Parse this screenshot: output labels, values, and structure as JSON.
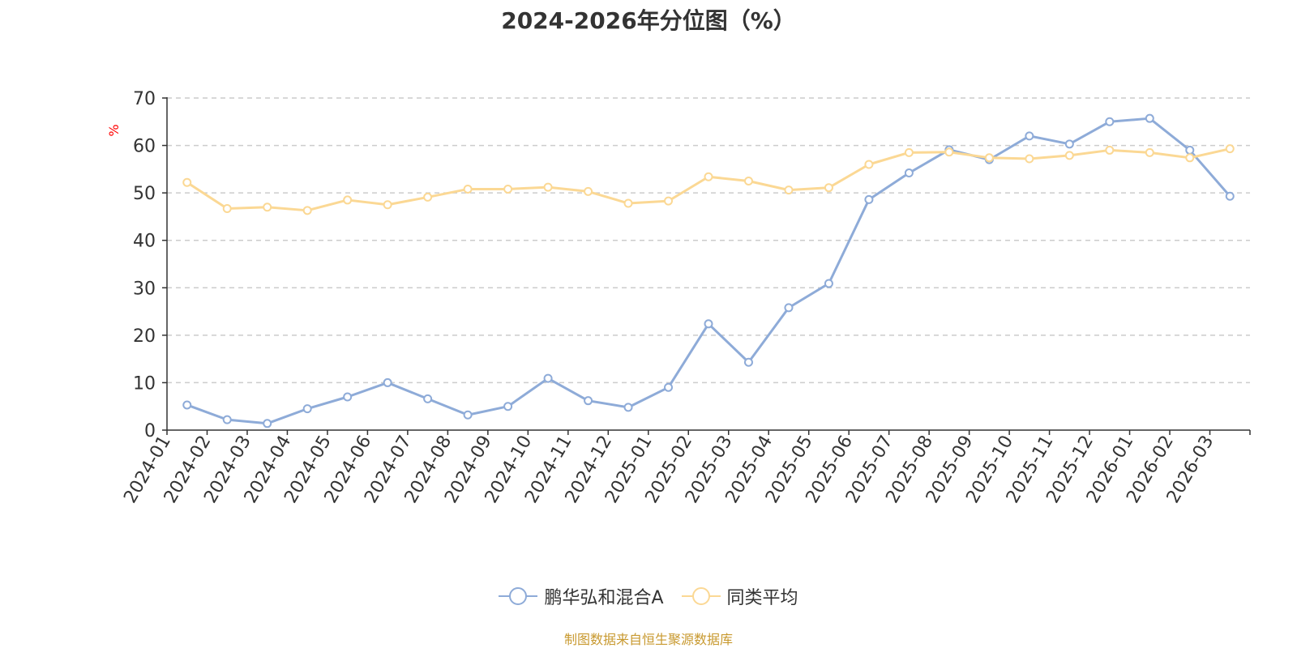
{
  "title": "2024-2026年分位图（%）",
  "unit_label": "%",
  "source_text": "制图数据来自恒生聚源数据库",
  "colors": {
    "series_a": "#8eabd8",
    "series_b": "#fbd894",
    "unit": "#ff0000",
    "source": "#c8992f"
  },
  "chart_data": {
    "type": "line",
    "title": "2024-2026年分位图（%）",
    "xlabel": "",
    "ylabel": "%",
    "ylim": [
      0,
      70
    ],
    "yticks": [
      0,
      10,
      20,
      30,
      40,
      50,
      60,
      70
    ],
    "grid": true,
    "legend_position": "bottom-center",
    "categories": [
      "2024-01",
      "2024-02",
      "2024-03",
      "2024-04",
      "2024-05",
      "2024-06",
      "2024-07",
      "2024-08",
      "2024-09",
      "2024-10",
      "2024-11",
      "2024-12",
      "2025-01",
      "2025-02",
      "2025-03",
      "2025-04",
      "2025-05",
      "2025-06",
      "2025-07",
      "2025-08",
      "2025-09",
      "2025-10",
      "2025-11",
      "2025-12",
      "2026-01",
      "2026-02",
      "2026-03"
    ],
    "series": [
      {
        "name": "鹏华弘和混合A",
        "color": "#8eabd8",
        "values": [
          5.3,
          2.2,
          1.4,
          4.5,
          7.0,
          10.0,
          6.6,
          3.2,
          5.0,
          10.9,
          6.2,
          4.8,
          9.0,
          22.4,
          14.3,
          25.8,
          30.9,
          48.6,
          54.2,
          59.1,
          57.0,
          62.0,
          60.3,
          65.0,
          65.7,
          59.0,
          49.3
        ]
      },
      {
        "name": "同类平均",
        "color": "#fbd894",
        "values": [
          52.2,
          46.7,
          47.0,
          46.3,
          48.5,
          47.5,
          49.1,
          50.8,
          50.8,
          51.2,
          50.3,
          47.8,
          48.3,
          53.4,
          52.5,
          50.6,
          51.1,
          56.0,
          58.5,
          58.6,
          57.4,
          57.2,
          57.9,
          59.0,
          58.5,
          57.4,
          59.3
        ]
      }
    ]
  }
}
